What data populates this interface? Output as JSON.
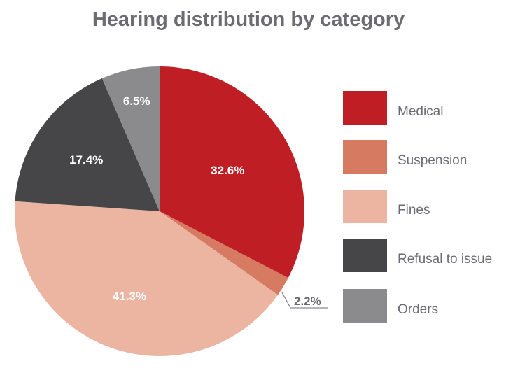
{
  "chart_data": {
    "type": "pie",
    "title": "Hearing distribution by category",
    "start_angle": "12 o'clock, clockwise",
    "legend_position": "right",
    "slices": [
      {
        "label": "Medical",
        "value": 32.6,
        "display": "32.6%",
        "color": "#be1e24",
        "label_color": "#ffffff"
      },
      {
        "label": "Suspension",
        "value": 2.2,
        "display": "2.2%",
        "color": "#d77a62",
        "label_color": "#6c6b72"
      },
      {
        "label": "Fines",
        "value": 41.3,
        "display": "41.3%",
        "color": "#ebb5a2",
        "label_color": "#ffffff"
      },
      {
        "label": "Refusal to issue",
        "value": 17.4,
        "display": "17.4%",
        "color": "#464547",
        "label_color": "#ffffff"
      },
      {
        "label": "Orders",
        "value": 6.5,
        "display": "6.5%",
        "color": "#8b8b8e",
        "label_color": "#ffffff"
      }
    ]
  }
}
